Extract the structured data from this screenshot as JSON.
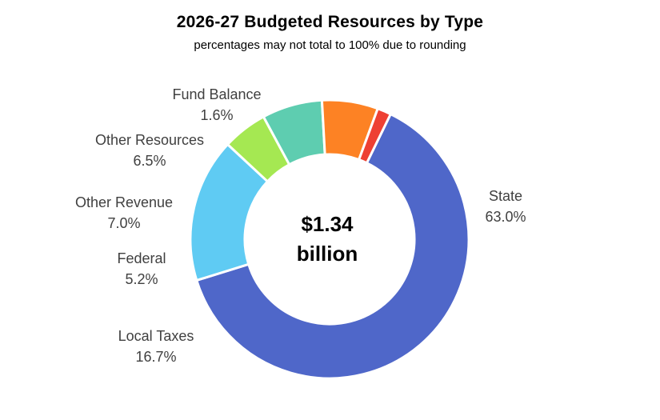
{
  "chart_data": {
    "type": "pie",
    "title": "2026-27 Budgeted Resources by Type",
    "subtitle": "percentages may not total to 100% due to rounding",
    "center_text": [
      "$1.34",
      "billion"
    ],
    "slices": [
      {
        "label": "State",
        "value": 63.0,
        "value_label": "63.0%",
        "color": "#4F67C9"
      },
      {
        "label": "Local Taxes",
        "value": 16.7,
        "value_label": "16.7%",
        "color": "#5FCBF3"
      },
      {
        "label": "Federal",
        "value": 5.2,
        "value_label": "5.2%",
        "color": "#A5E852"
      },
      {
        "label": "Other Revenue",
        "value": 7.0,
        "value_label": "7.0%",
        "color": "#5ECDB0"
      },
      {
        "label": "Other Resources",
        "value": 6.5,
        "value_label": "6.5%",
        "color": "#FD8224"
      },
      {
        "label": "Fund Balance",
        "value": 1.6,
        "value_label": "1.6%",
        "color": "#EE4033"
      }
    ],
    "legend": "none"
  }
}
